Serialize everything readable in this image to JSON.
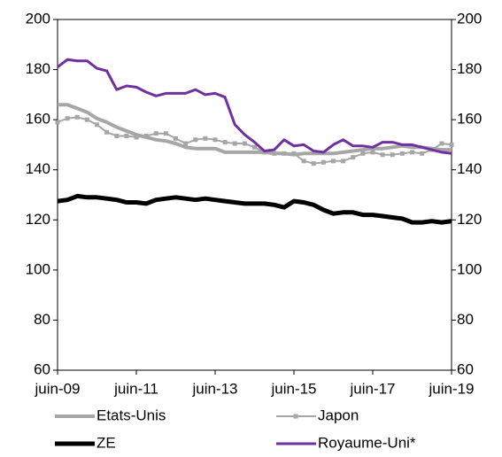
{
  "chart_data": {
    "type": "line",
    "categories": [
      "juin-09",
      null,
      null,
      null,
      null,
      null,
      null,
      null,
      "juin-11",
      null,
      null,
      null,
      null,
      null,
      null,
      null,
      "juin-13",
      null,
      null,
      null,
      null,
      null,
      null,
      null,
      "juin-15",
      null,
      null,
      null,
      null,
      null,
      null,
      null,
      "juin-17",
      null,
      null,
      null,
      null,
      null,
      null,
      null,
      "juin-19"
    ],
    "series": [
      {
        "name": "Etats-Unis",
        "color": "#a6a6a6",
        "values": [
          166,
          166,
          164.5,
          163,
          160.5,
          159,
          157,
          155.5,
          154,
          153,
          152,
          151.5,
          150.5,
          149,
          148.5,
          148.5,
          148.5,
          147,
          147,
          147,
          147,
          147,
          146.5,
          146.5,
          146,
          146.5,
          146.5,
          146.5,
          146.5,
          147,
          147.5,
          148,
          148.5,
          148.5,
          149,
          149.5,
          149,
          149,
          148.5,
          148,
          148
        ]
      },
      {
        "name": "Japon",
        "color": "#a6a6a6",
        "values": [
          159,
          160.5,
          161,
          160,
          158,
          155,
          153.5,
          153.5,
          153,
          153.5,
          154.5,
          154.5,
          152.5,
          150.5,
          152,
          152.5,
          152,
          151,
          150.5,
          150.5,
          149,
          147,
          146.5,
          146.5,
          146.5,
          143.5,
          142.5,
          143,
          143.5,
          143.5,
          145,
          146.5,
          147,
          146,
          146,
          146.5,
          147,
          146.5,
          148,
          150.5,
          150
        ]
      },
      {
        "name": "ZE",
        "color": "#000000",
        "values": [
          127.5,
          128,
          129.5,
          129,
          129,
          128.5,
          128,
          127,
          127,
          126.5,
          128,
          128.5,
          129,
          128.5,
          128,
          128.5,
          128,
          127.5,
          127,
          126.5,
          126.5,
          126.5,
          126,
          125,
          127.5,
          127,
          126,
          124,
          122.5,
          123,
          123,
          122,
          122,
          121.5,
          121,
          120.5,
          119,
          119,
          119.5,
          119,
          119.5
        ]
      },
      {
        "name": "Royaume-Uni*",
        "color": "#7030a0",
        "values": [
          181,
          184,
          183.5,
          183.5,
          180.5,
          179.5,
          172,
          173.5,
          173,
          171,
          169.5,
          170.5,
          170.5,
          170.5,
          172,
          170,
          170.5,
          169,
          158,
          154,
          151,
          147.5,
          148,
          152,
          149.5,
          150,
          147.5,
          147,
          150,
          152,
          149.5,
          149.5,
          149,
          151,
          151,
          150,
          150,
          149,
          148,
          147,
          146.5
        ]
      }
    ],
    "ylim": [
      60,
      200
    ],
    "yticks": [
      60,
      80,
      100,
      120,
      140,
      160,
      180,
      200
    ],
    "y2lim": [
      60,
      200
    ],
    "y2ticks": [
      60,
      80,
      100,
      120,
      140,
      160,
      180,
      200
    ]
  }
}
